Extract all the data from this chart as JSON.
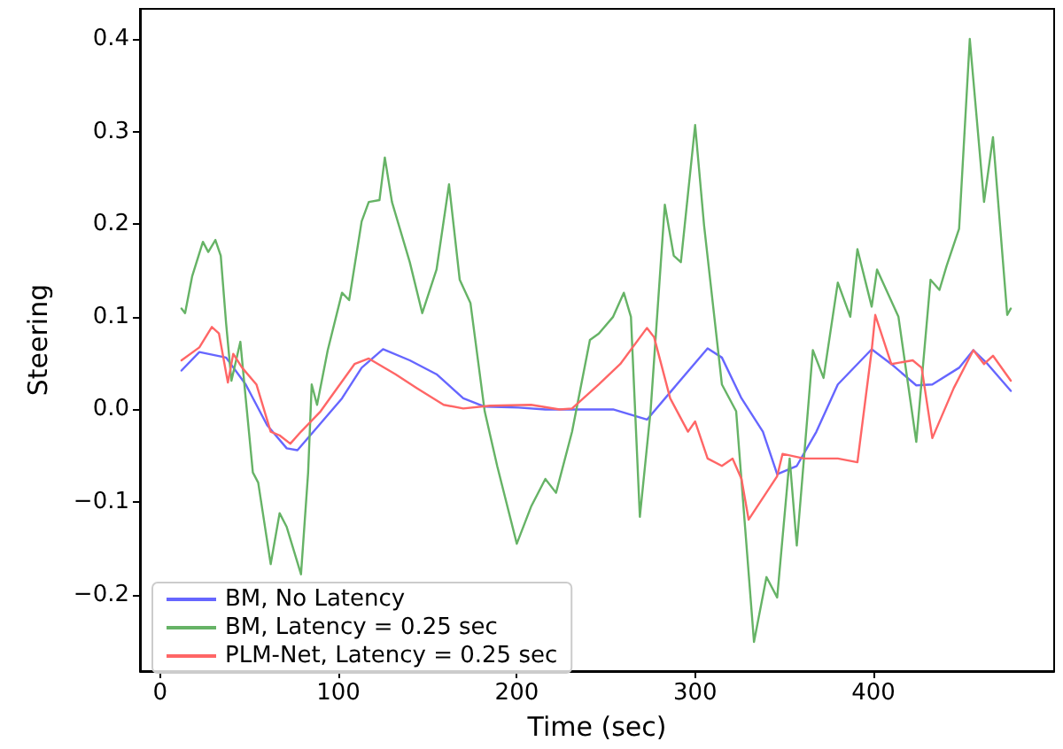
{
  "chart_data": {
    "type": "line",
    "xlabel": "Time (sec)",
    "ylabel": "Steering",
    "xlim": [
      -11.3,
      501.3
    ],
    "ylim": [
      -0.2825,
      0.4325
    ],
    "xticks": [
      0,
      100,
      200,
      300,
      400
    ],
    "yticks": [
      {
        "value": -0.2,
        "label": "−0.2"
      },
      {
        "value": -0.1,
        "label": "−0.1"
      },
      {
        "value": 0,
        "label": "0.0"
      },
      0.1,
      0.2,
      0.3,
      0.4
    ],
    "grid": false,
    "legend": "bottom left",
    "line_style": "solid",
    "marker": "none",
    "series": [
      {
        "name": "BM, No Latency",
        "color": "#6666ff",
        "x": [
          12,
          22,
          37,
          48,
          60,
          71,
          77,
          86,
          102,
          113,
          125,
          140,
          155,
          170,
          182,
          201,
          216,
          239,
          254,
          273,
          288,
          307,
          315,
          326,
          338,
          346,
          357,
          368,
          380,
          399,
          410,
          424,
          433,
          448,
          456,
          464,
          477
        ],
        "values": [
          0.042,
          0.062,
          0.056,
          0.027,
          -0.017,
          -0.042,
          -0.044,
          -0.024,
          0.012,
          0.045,
          0.065,
          0.053,
          0.038,
          0.012,
          0.003,
          0.002,
          0,
          0,
          0,
          -0.011,
          0.023,
          0.066,
          0.056,
          0.012,
          -0.024,
          -0.07,
          -0.061,
          -0.024,
          0.027,
          0.065,
          0.049,
          0.026,
          0.027,
          0.045,
          0.064,
          0.049,
          0.02
        ]
      },
      {
        "name": "BM, Latency = 0.25 sec",
        "color": "#66b366",
        "x": [
          12,
          14,
          18,
          24,
          27,
          31,
          34,
          37,
          40,
          45,
          48,
          52,
          55,
          62,
          67,
          71,
          79,
          83,
          85,
          88,
          94,
          102,
          106,
          113,
          117,
          123,
          126,
          130,
          140,
          147,
          155,
          162,
          168,
          174,
          182,
          189,
          200,
          208,
          216,
          222,
          231,
          241,
          246,
          254,
          260,
          264,
          269,
          275,
          283,
          288,
          292,
          300,
          305,
          315,
          323,
          328,
          333,
          340,
          346,
          353,
          357,
          366,
          372,
          380,
          387,
          391,
          399,
          402,
          414,
          424,
          432,
          437,
          441,
          448,
          454,
          462,
          467,
          475,
          477
        ],
        "values": [
          0.109,
          0.104,
          0.144,
          0.181,
          0.17,
          0.183,
          0.166,
          0.093,
          0.031,
          0.073,
          0.012,
          -0.068,
          -0.079,
          -0.167,
          -0.112,
          -0.127,
          -0.178,
          -0.068,
          0.027,
          0.005,
          0.064,
          0.126,
          0.118,
          0.203,
          0.224,
          0.226,
          0.272,
          0.224,
          0.159,
          0.104,
          0.151,
          0.243,
          0.14,
          0.115,
          -0.002,
          -0.061,
          -0.145,
          -0.105,
          -0.075,
          -0.09,
          -0.024,
          0.075,
          0.082,
          0.1,
          0.126,
          0.1,
          -0.116,
          -0.002,
          0.221,
          0.166,
          0.159,
          0.307,
          0.199,
          0.027,
          -0.002,
          -0.127,
          -0.251,
          -0.181,
          -0.203,
          -0.053,
          -0.147,
          0.064,
          0.034,
          0.137,
          0.1,
          0.173,
          0.111,
          0.151,
          0.1,
          -0.035,
          0.14,
          0.129,
          0.155,
          0.195,
          0.4,
          0.224,
          0.294,
          0.102,
          0.109
        ]
      },
      {
        "name": "PLM-Net, Latency = 0.25 sec",
        "color": "#ff6666",
        "x": [
          12,
          22,
          29,
          33,
          38,
          41,
          46,
          54,
          62,
          67,
          73,
          79,
          90,
          109,
          117,
          132,
          144,
          159,
          170,
          185,
          208,
          224,
          231,
          246,
          258,
          273,
          277,
          286,
          296,
          300,
          307,
          315,
          321,
          326,
          330,
          346,
          349,
          361,
          380,
          391,
          399,
          401,
          410,
          422,
          427,
          433,
          445,
          456,
          462,
          467,
          477
        ],
        "values": [
          0.053,
          0.067,
          0.089,
          0.082,
          0.029,
          0.06,
          0.045,
          0.027,
          -0.024,
          -0.028,
          -0.037,
          -0.024,
          -0.002,
          0.049,
          0.055,
          0.038,
          0.023,
          0.005,
          0.001,
          0.004,
          0.005,
          0,
          0.001,
          0.027,
          0.049,
          0.088,
          0.078,
          0.012,
          -0.024,
          -0.013,
          -0.053,
          -0.061,
          -0.053,
          -0.075,
          -0.119,
          -0.072,
          -0.048,
          -0.053,
          -0.053,
          -0.057,
          0.064,
          0.102,
          0.049,
          0.053,
          0.045,
          -0.031,
          0.023,
          0.064,
          0.049,
          0.058,
          0.031
        ]
      }
    ]
  }
}
